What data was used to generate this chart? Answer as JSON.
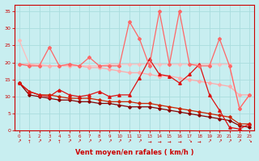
{
  "x": [
    0,
    1,
    2,
    3,
    4,
    5,
    6,
    7,
    8,
    9,
    10,
    11,
    12,
    13,
    14,
    15,
    16,
    17,
    18,
    19,
    20,
    21,
    22,
    23
  ],
  "line_very_light_pink": [
    26.5,
    19.5,
    19.5,
    19.0,
    19.0,
    19.5,
    19.0,
    19.0,
    19.0,
    19.5,
    19.5,
    19.5,
    19.5,
    19.5,
    19.5,
    19.5,
    19.5,
    19.5,
    19.5,
    19.5,
    19.5,
    19.5,
    6.5,
    10.5
  ],
  "line_light_pink": [
    19.5,
    19.5,
    19.0,
    19.0,
    19.0,
    19.0,
    19.0,
    18.5,
    18.5,
    18.0,
    17.5,
    17.0,
    17.0,
    16.5,
    16.0,
    16.0,
    15.5,
    15.0,
    14.5,
    14.0,
    13.5,
    13.0,
    10.5,
    10.5
  ],
  "line_bright_pink_spiky": [
    19.5,
    19.0,
    19.0,
    24.5,
    19.0,
    19.5,
    19.0,
    21.5,
    19.0,
    19.0,
    19.0,
    32.0,
    27.0,
    19.0,
    35.0,
    19.5,
    35.0,
    19.5,
    19.0,
    19.0,
    27.0,
    19.0,
    6.5,
    10.5
  ],
  "line_medium_red": [
    14.0,
    11.5,
    10.5,
    10.0,
    12.0,
    10.5,
    10.0,
    10.5,
    11.5,
    10.0,
    10.5,
    10.5,
    15.5,
    21.0,
    16.5,
    16.0,
    14.0,
    16.5,
    19.5,
    10.5,
    6.0,
    1.0,
    0.5,
    2.0
  ],
  "line_dark_red_smooth": [
    14.0,
    11.5,
    10.5,
    10.5,
    10.0,
    9.5,
    9.5,
    9.5,
    9.0,
    8.5,
    8.5,
    8.5,
    8.0,
    8.0,
    7.5,
    7.0,
    6.5,
    6.0,
    5.5,
    5.0,
    4.5,
    4.0,
    2.0,
    2.0
  ],
  "line_darkest_red": [
    14.0,
    10.5,
    10.0,
    9.5,
    9.0,
    9.0,
    8.5,
    8.5,
    8.0,
    8.0,
    7.5,
    7.0,
    7.0,
    7.0,
    6.5,
    6.0,
    5.5,
    5.0,
    4.5,
    4.0,
    3.5,
    3.0,
    1.5,
    1.0
  ],
  "arrows": [
    "NE",
    "N",
    "NE",
    "NE",
    "N",
    "NE",
    "NE",
    "NE",
    "NE",
    "NE",
    "NE",
    "NE",
    "NE",
    "E",
    "E",
    "E",
    "E",
    "SE",
    "E",
    "NE",
    "NE",
    "NE",
    "NE",
    "SE"
  ],
  "xlabel": "Vent moyen/en rafales ( km/h )",
  "xlim": [
    -0.5,
    23.5
  ],
  "ylim": [
    0,
    37
  ],
  "yticks": [
    0,
    5,
    10,
    15,
    20,
    25,
    30,
    35
  ],
  "xticks": [
    0,
    1,
    2,
    3,
    4,
    5,
    6,
    7,
    8,
    9,
    10,
    11,
    12,
    13,
    14,
    15,
    16,
    17,
    18,
    19,
    20,
    21,
    22,
    23
  ],
  "bg_color": "#c8eef0",
  "grid_color": "#aadddd",
  "color_very_light_pink": "#ffbbbb",
  "color_light_pink": "#ffaaaa",
  "color_bright_pink_spiky": "#ff6666",
  "color_medium_red": "#dd1111",
  "color_dark_red_smooth": "#cc2200",
  "color_darkest_red": "#880000",
  "axis_color": "#cc0000",
  "tick_color": "#cc0000",
  "label_fontsize": 5.5,
  "xlabel_fontsize": 6.0
}
